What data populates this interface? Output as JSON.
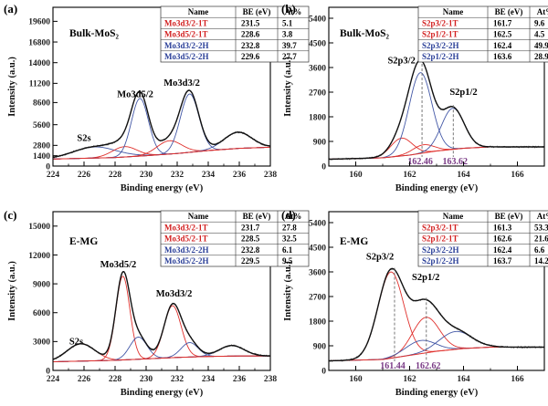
{
  "colors": {
    "envelope": "#111111",
    "raw": "#555555",
    "background": "#e0302c",
    "component_1T": "#e0302c",
    "component_2H": "#4257a6",
    "position_label": "#7a3b86",
    "table_1T": "#d21f1f",
    "table_2H": "#2a3f98"
  },
  "chart_data": [
    {
      "type": "line",
      "panel": "(a)",
      "sample": "Bulk-MoS₂",
      "xlabel": "Binding energy (eV)",
      "ylabel": "Intensity (a.u.)",
      "xlim": [
        224,
        238
      ],
      "ylim": [
        0,
        21500
      ],
      "xticks": [
        224,
        226,
        228,
        230,
        232,
        234,
        236,
        238
      ],
      "yticks": [
        0,
        1400,
        2800,
        5600,
        8600,
        11200,
        14000,
        16800,
        19600
      ],
      "peak_labels": [
        {
          "text": "S2s",
          "x": 226.0,
          "y": 3400
        },
        {
          "text": "Mo3d5/2",
          "x": 229.3,
          "y": 9300
        },
        {
          "text": "Mo3d3/2",
          "x": 232.3,
          "y": 10900
        }
      ],
      "table": {
        "headers": [
          "Name",
          "BE (eV)",
          "At%"
        ],
        "rows": [
          {
            "name": "Mo3d3/2-1T",
            "be": "231.5",
            "at": "5.1",
            "phase": "1T"
          },
          {
            "name": "Mo3d5/2-1T",
            "be": "228.6",
            "at": "3.8",
            "phase": "1T"
          },
          {
            "name": "Mo3d3/2-2H",
            "be": "232.8",
            "at": "39.7",
            "phase": "2H"
          },
          {
            "name": "Mo3d5/2-2H",
            "be": "229.6",
            "at": "27.7",
            "phase": "2H"
          }
        ]
      },
      "background": [
        [
          224,
          950
        ],
        [
          228,
          1150
        ],
        [
          230,
          1400
        ],
        [
          232,
          1700
        ],
        [
          234,
          2100
        ],
        [
          236,
          2400
        ],
        [
          238,
          2550
        ]
      ],
      "components": [
        {
          "phase": "2H",
          "center": 226.7,
          "amp": 1500,
          "width": 1.4
        },
        {
          "phase": "1T",
          "center": 228.6,
          "amp": 1400,
          "width": 0.8
        },
        {
          "phase": "2H",
          "center": 229.6,
          "amp": 7800,
          "width": 0.55
        },
        {
          "phase": "1T",
          "center": 231.5,
          "amp": 1800,
          "width": 0.8
        },
        {
          "phase": "2H",
          "center": 232.8,
          "amp": 7900,
          "width": 0.6
        },
        {
          "phase": "2H",
          "center": 235.9,
          "amp": 2200,
          "width": 0.9
        }
      ]
    },
    {
      "type": "line",
      "panel": "(b)",
      "sample": "Bulk-MoS₂",
      "xlabel": "Binding energy (eV)",
      "ylabel": "Intensity (a.u.)",
      "xlim": [
        159,
        167
      ],
      "ylim": [
        0,
        5800
      ],
      "xticks": [
        160,
        162,
        164,
        166
      ],
      "yticks": [
        0,
        900,
        1800,
        2700,
        3600,
        4500,
        5400
      ],
      "peak_labels": [
        {
          "text": "S2p3/2",
          "x": 161.7,
          "y": 3750
        },
        {
          "text": "S2p1/2",
          "x": 164.0,
          "y": 2600
        }
      ],
      "position_labels": [
        {
          "text": "162.46",
          "x": 162.46
        },
        {
          "text": "163.62",
          "x": 163.62
        }
      ],
      "table": {
        "headers": [
          "Name",
          "BE (eV)",
          "At%"
        ],
        "rows": [
          {
            "name": "S2p3/2-1T",
            "be": "161.7",
            "at": "9.6",
            "phase": "1T"
          },
          {
            "name": "S2p1/2-1T",
            "be": "162.5",
            "at": "4.5",
            "phase": "1T"
          },
          {
            "name": "S2p3/2-2H",
            "be": "162.4",
            "at": "49.9",
            "phase": "2H"
          },
          {
            "name": "S2p1/2-2H",
            "be": "163.6",
            "at": "28.9",
            "phase": "2H"
          }
        ]
      },
      "background": [
        [
          159,
          250
        ],
        [
          161,
          300
        ],
        [
          162,
          400
        ],
        [
          163,
          550
        ],
        [
          164,
          650
        ],
        [
          165,
          700
        ],
        [
          167,
          700
        ]
      ],
      "components": [
        {
          "phase": "1T",
          "center": 161.7,
          "amp": 650,
          "width": 0.4
        },
        {
          "phase": "1T",
          "center": 162.5,
          "amp": 300,
          "width": 0.4
        },
        {
          "phase": "2H",
          "center": 162.4,
          "amp": 2950,
          "width": 0.42
        },
        {
          "phase": "2H",
          "center": 163.6,
          "amp": 1500,
          "width": 0.42
        }
      ]
    },
    {
      "type": "line",
      "panel": "(c)",
      "sample": "E-MG",
      "xlabel": "Binding energy (eV)",
      "ylabel": "Intensity (a.u.)",
      "xlim": [
        224,
        238
      ],
      "ylim": [
        0,
        16500
      ],
      "xticks": [
        224,
        226,
        228,
        230,
        232,
        234,
        236,
        238
      ],
      "yticks": [
        0,
        3000,
        6000,
        9000,
        12000,
        15000
      ],
      "peak_labels": [
        {
          "text": "S2s",
          "x": 225.5,
          "y": 2700
        },
        {
          "text": "Mo3d5/2",
          "x": 228.2,
          "y": 10700
        },
        {
          "text": "Mo3d3/2",
          "x": 231.8,
          "y": 7700
        }
      ],
      "table": {
        "headers": [
          "Name",
          "BE (eV)",
          "At%"
        ],
        "rows": [
          {
            "name": "Mo3d3/2-1T",
            "be": "231.7",
            "at": "27.8",
            "phase": "1T"
          },
          {
            "name": "Mo3d5/2-1T",
            "be": "228.5",
            "at": "32.5",
            "phase": "1T"
          },
          {
            "name": "Mo3d3/2-2H",
            "be": "232.8",
            "at": "6.1",
            "phase": "2H"
          },
          {
            "name": "Mo3d5/2-2H",
            "be": "229.5",
            "at": "9.5",
            "phase": "2H"
          }
        ]
      },
      "background": [
        [
          224,
          900
        ],
        [
          228,
          1050
        ],
        [
          230,
          1200
        ],
        [
          232,
          1350
        ],
        [
          234,
          1450
        ],
        [
          236,
          1500
        ],
        [
          238,
          1500
        ]
      ],
      "components": [
        {
          "phase": "1T",
          "center": 225.8,
          "amp": 1800,
          "width": 0.9
        },
        {
          "phase": "1T",
          "center": 228.5,
          "amp": 8700,
          "width": 0.45
        },
        {
          "phase": "2H",
          "center": 229.5,
          "amp": 2300,
          "width": 0.55
        },
        {
          "phase": "1T",
          "center": 231.7,
          "amp": 5400,
          "width": 0.55
        },
        {
          "phase": "2H",
          "center": 232.8,
          "amp": 1500,
          "width": 0.55
        },
        {
          "phase": "2H",
          "center": 235.5,
          "amp": 1100,
          "width": 0.8
        }
      ]
    },
    {
      "type": "line",
      "panel": "(d)",
      "sample": "E-MG",
      "xlabel": "Binding energy (eV)",
      "ylabel": "Intensity (a.u.)",
      "xlim": [
        159,
        167
      ],
      "ylim": [
        0,
        5800
      ],
      "xticks": [
        160,
        162,
        164,
        166
      ],
      "yticks": [
        0,
        900,
        1800,
        2700,
        3600,
        4500,
        5400
      ],
      "peak_labels": [
        {
          "text": "S2p3/2",
          "x": 160.9,
          "y": 4050
        },
        {
          "text": "S2p1/2",
          "x": 162.6,
          "y": 3300
        }
      ],
      "position_labels": [
        {
          "text": "161.44",
          "x": 161.44
        },
        {
          "text": "162.62",
          "x": 162.62
        }
      ],
      "table": {
        "headers": [
          "Name",
          "BE (eV)",
          "At%"
        ],
        "rows": [
          {
            "name": "S2p3/2-1T",
            "be": "161.3",
            "at": "53.3",
            "phase": "1T"
          },
          {
            "name": "S2p1/2-1T",
            "be": "162.6",
            "at": "21.6",
            "phase": "1T"
          },
          {
            "name": "S2p3/2-2H",
            "be": "162.4",
            "at": "6.6",
            "phase": "2H"
          },
          {
            "name": "S2p1/2-2H",
            "be": "163.7",
            "at": "14.2",
            "phase": "2H"
          }
        ]
      },
      "background": [
        [
          159,
          350
        ],
        [
          161,
          400
        ],
        [
          162,
          550
        ],
        [
          163,
          700
        ],
        [
          164,
          800
        ],
        [
          165,
          850
        ],
        [
          167,
          850
        ]
      ],
      "components": [
        {
          "phase": "1T",
          "center": 161.3,
          "amp": 3150,
          "width": 0.48
        },
        {
          "phase": "1T",
          "center": 162.6,
          "amp": 1300,
          "width": 0.5
        },
        {
          "phase": "2H",
          "center": 162.4,
          "amp": 480,
          "width": 0.55
        },
        {
          "phase": "2H",
          "center": 163.7,
          "amp": 650,
          "width": 0.6
        }
      ]
    }
  ]
}
